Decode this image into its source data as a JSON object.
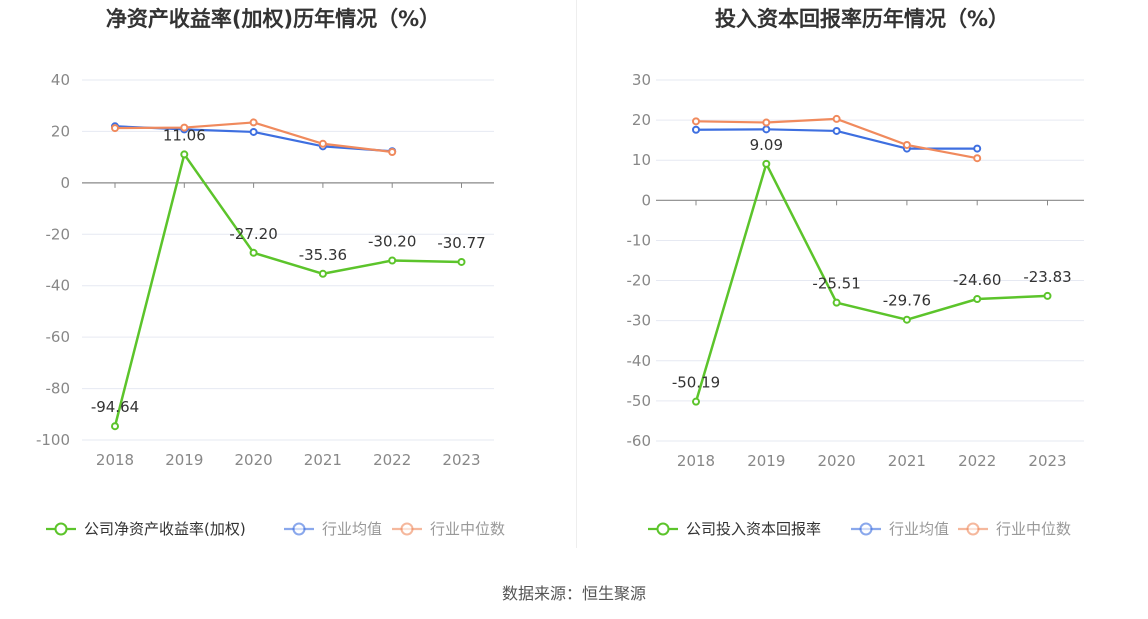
{
  "source": "数据来源：恒生聚源",
  "colors": {
    "company": "#5cc42b",
    "avg": "#3e6fe0",
    "median": "#f08a5d",
    "grid": "#e6e9f2",
    "axis": "#888888",
    "tick": "#888888",
    "title": "#333333"
  },
  "chart_data": [
    {
      "type": "line",
      "title": "净资产收益率(加权)历年情况（%）",
      "categories": [
        "2018",
        "2019",
        "2020",
        "2021",
        "2022",
        "2023"
      ],
      "ylim": [
        -100,
        40
      ],
      "yticks": [
        40,
        20,
        0,
        -20,
        -40,
        -60,
        -80,
        -100
      ],
      "grid": true,
      "legend_position": "bottom",
      "series": [
        {
          "name": "公司净资产收益率(加权)",
          "role": "company",
          "values": [
            -94.64,
            11.06,
            -27.2,
            -35.36,
            -30.2,
            -30.77
          ],
          "labels": [
            "-94.64",
            "11.06",
            "-27.20",
            "-35.36",
            "-30.20",
            "-30.77"
          ]
        },
        {
          "name": "行业均值",
          "role": "avg",
          "values": [
            22.0,
            20.8,
            19.8,
            14.2,
            12.3,
            null
          ]
        },
        {
          "name": "行业中位数",
          "role": "median",
          "values": [
            21.3,
            21.5,
            23.5,
            15.2,
            12.0,
            null
          ]
        }
      ]
    },
    {
      "type": "line",
      "title": "投入资本回报率历年情况（%）",
      "categories": [
        "2018",
        "2019",
        "2020",
        "2021",
        "2022",
        "2023"
      ],
      "ylim": [
        -60,
        30
      ],
      "yticks": [
        30,
        20,
        10,
        0,
        -10,
        -20,
        -30,
        -40,
        -50,
        -60
      ],
      "grid": true,
      "legend_position": "bottom",
      "series": [
        {
          "name": "公司投入资本回报率",
          "role": "company",
          "values": [
            -50.19,
            9.09,
            -25.51,
            -29.76,
            -24.6,
            -23.83
          ],
          "labels": [
            "-50.19",
            "9.09",
            "-25.51",
            "-29.76",
            "-24.60",
            "-23.83"
          ]
        },
        {
          "name": "行业均值",
          "role": "avg",
          "values": [
            17.6,
            17.7,
            17.3,
            12.9,
            12.9,
            null
          ]
        },
        {
          "name": "行业中位数",
          "role": "median",
          "values": [
            19.7,
            19.4,
            20.3,
            13.8,
            10.5,
            null
          ]
        }
      ]
    }
  ]
}
